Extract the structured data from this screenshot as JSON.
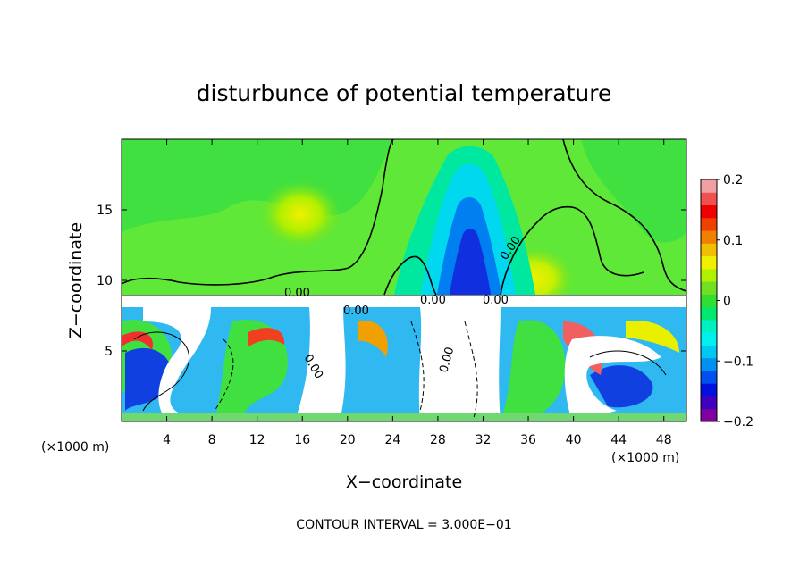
{
  "chart_data": {
    "type": "heatmap",
    "title": "disturbunce of potential temperature",
    "xlabel": "X−coordinate",
    "ylabel": "Z−coordinate",
    "x_unit_left": "(×1000 m)",
    "x_unit_right": "(×1000 m)",
    "footer": "CONTOUR INTERVAL = 3.000E−01",
    "xlim": [
      0,
      50
    ],
    "ylim": [
      0,
      20
    ],
    "x_ticks": [
      4,
      8,
      12,
      16,
      20,
      24,
      28,
      32,
      36,
      40,
      44,
      48
    ],
    "x_tick_labels": [
      "4",
      "8",
      "12",
      "16",
      "20",
      "24",
      "28",
      "32",
      "36",
      "40",
      "44",
      "48"
    ],
    "y_ticks": [
      5,
      10,
      15
    ],
    "y_tick_labels": [
      "5",
      "10",
      "15"
    ],
    "colorbar": {
      "min": -0.2,
      "max": 0.2,
      "tick_values": [
        0.2,
        0.1,
        0,
        -0.1,
        -0.2
      ],
      "tick_labels": [
        "0.2",
        "0.1",
        "0",
        "−0.1",
        "−0.2"
      ],
      "colors": [
        "#8000a0",
        "#4000c0",
        "#0010e0",
        "#0050f0",
        "#0090f0",
        "#00c8f0",
        "#00f0f0",
        "#00f0c0",
        "#00e870",
        "#30e030",
        "#70e020",
        "#b0f000",
        "#f0f000",
        "#f0c000",
        "#f08000",
        "#f04000",
        "#f00000",
        "#f05050",
        "#f0a0a0"
      ]
    },
    "contour_labels": [
      "0.00",
      "0.00",
      "0.00",
      "0.00",
      "0.00",
      "0.00",
      "0.00"
    ],
    "field_regions_upper": [
      {
        "name": "background",
        "value": 0.03
      },
      {
        "name": "warm-pocket-x16",
        "value": 0.09
      },
      {
        "name": "warm-pocket-x36",
        "value": 0.12
      },
      {
        "name": "cold-plume-x30-outer",
        "value": -0.02
      },
      {
        "name": "cold-plume-x30-mid",
        "value": -0.08
      },
      {
        "name": "cold-plume-x30-core",
        "value": -0.16
      }
    ]
  }
}
